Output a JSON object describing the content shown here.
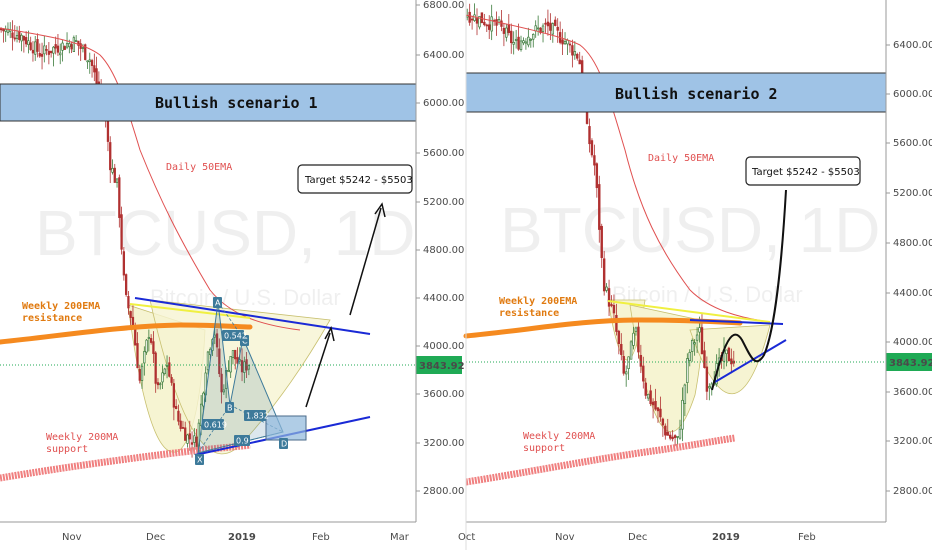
{
  "colors": {
    "banner_fill": "#9fc3e6",
    "ema50": "#e05050",
    "ema200": "#f58a1f",
    "ma200": "#f08080",
    "trendline": "#1a2ad6",
    "yellow": "#f0f040",
    "price_line": "#22aa55",
    "candle_up": "#3a7a3a",
    "candle_down": "#b03030",
    "harmonic": "#3d7a9a",
    "cup_fill": "#f6f4d2"
  },
  "chart_data": [
    {
      "type": "candlestick",
      "title": "Bullish scenario 1",
      "watermark": "BTCUSD, 1D",
      "watermark_sub": "Bitcoin / U.S. Dollar",
      "ylim": [
        2500,
        6850
      ],
      "y_ticks": [
        "6800.00",
        "6400.00",
        "6000.00",
        "5600.00",
        "5200.00",
        "4800.00",
        "4400.00",
        "4000.00",
        "3600.00",
        "3200.00",
        "2800.00"
      ],
      "x_ticks": [
        "Nov",
        "Dec",
        "2019",
        "Feb",
        "Mar"
      ],
      "current_price": "3843.92",
      "banner": {
        "y_top": 6150,
        "y_bottom": 5830,
        "label": "Bullish scenario 1"
      },
      "target_label": "Target $5242 - $5503",
      "annotations": {
        "daily_50ema": "Daily 50EMA",
        "weekly_200ema": "Weekly 200EMA",
        "weekly_200ema_sub": "resistance",
        "weekly_200ma": "Weekly 200MA",
        "weekly_200ma_sub": "support"
      },
      "harmonic_labels": {
        "X": "X",
        "A": "A",
        "B": "B",
        "C": "C",
        "D": "D",
        "r_xb": "0.619",
        "r_ac": "0.542",
        "r_bd": "1.832",
        "r_xd": "0.9"
      },
      "ema50": [
        6680,
        6640,
        6600,
        6560,
        6480,
        6300,
        6000,
        5600,
        5200,
        4800,
        4500,
        4300,
        4150,
        4050,
        3980,
        3930
      ],
      "ma200_start": 2880,
      "ma200_end": 3260
    },
    {
      "type": "candlestick",
      "title": "Bullish scenario 2",
      "watermark": "BTCUSD, 1D",
      "watermark_sub": "Bitcoin / U.S. Dollar",
      "ylim": [
        2600,
        6800
      ],
      "y_ticks": [
        "6400.00",
        "6000.00",
        "5600.00",
        "5200.00",
        "4800.00",
        "4400.00",
        "4000.00",
        "3600.00",
        "3200.00",
        "2800.00"
      ],
      "x_ticks": [
        "Oct",
        "Nov",
        "Dec",
        "2019",
        "Feb"
      ],
      "current_price": "3843.92",
      "banner": {
        "y_top": 6180,
        "y_bottom": 5850,
        "label": "Bullish scenario 2"
      },
      "target_label": "Target $5242 - $5503",
      "annotations": {
        "daily_50ema": "Daily 50EMA",
        "weekly_200ema": "Weekly 200EMA",
        "weekly_200ema_sub": "resistance",
        "weekly_200ma": "Weekly 200MA",
        "weekly_200ma_sub": "support"
      },
      "ma200_start": 2880,
      "ma200_end": 3240
    }
  ]
}
